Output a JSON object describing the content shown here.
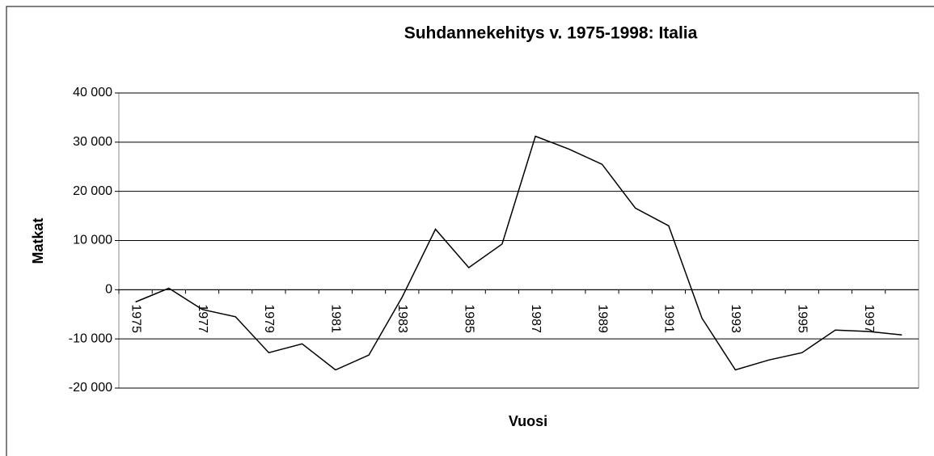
{
  "chart_data": {
    "type": "line",
    "title": "Suhdannekehitys v. 1975-1998: Italia",
    "xlabel": "Vuosi",
    "ylabel": "Matkat",
    "categories": [
      "1975",
      null,
      "1977",
      null,
      "1979",
      null,
      "1981",
      null,
      "1983",
      null,
      "1985",
      null,
      "1987",
      null,
      "1989",
      null,
      "1991",
      null,
      "1993",
      null,
      "1995",
      null,
      "1997",
      null
    ],
    "series": [
      {
        "color": "#000000",
        "values": [
          -2500,
          300,
          -4000,
          -5500,
          -12800,
          -11000,
          -16300,
          -13300,
          -1500,
          12300,
          4500,
          9300,
          31200,
          28600,
          25500,
          16600,
          13000,
          -5800,
          -16300,
          -14300,
          -12800,
          -8200,
          -8500,
          -9200
        ]
      }
    ],
    "ylim": [
      -20000,
      40000
    ],
    "yticks": [
      {
        "value": -20000,
        "label": "-20 000"
      },
      {
        "value": -10000,
        "label": "-10 000"
      },
      {
        "value": 0,
        "label": "0"
      },
      {
        "value": 10000,
        "label": "10 000"
      },
      {
        "value": 20000,
        "label": "20 000"
      },
      {
        "value": 30000,
        "label": "30 000"
      },
      {
        "value": 40000,
        "label": "40 000"
      }
    ],
    "grid": true
  }
}
